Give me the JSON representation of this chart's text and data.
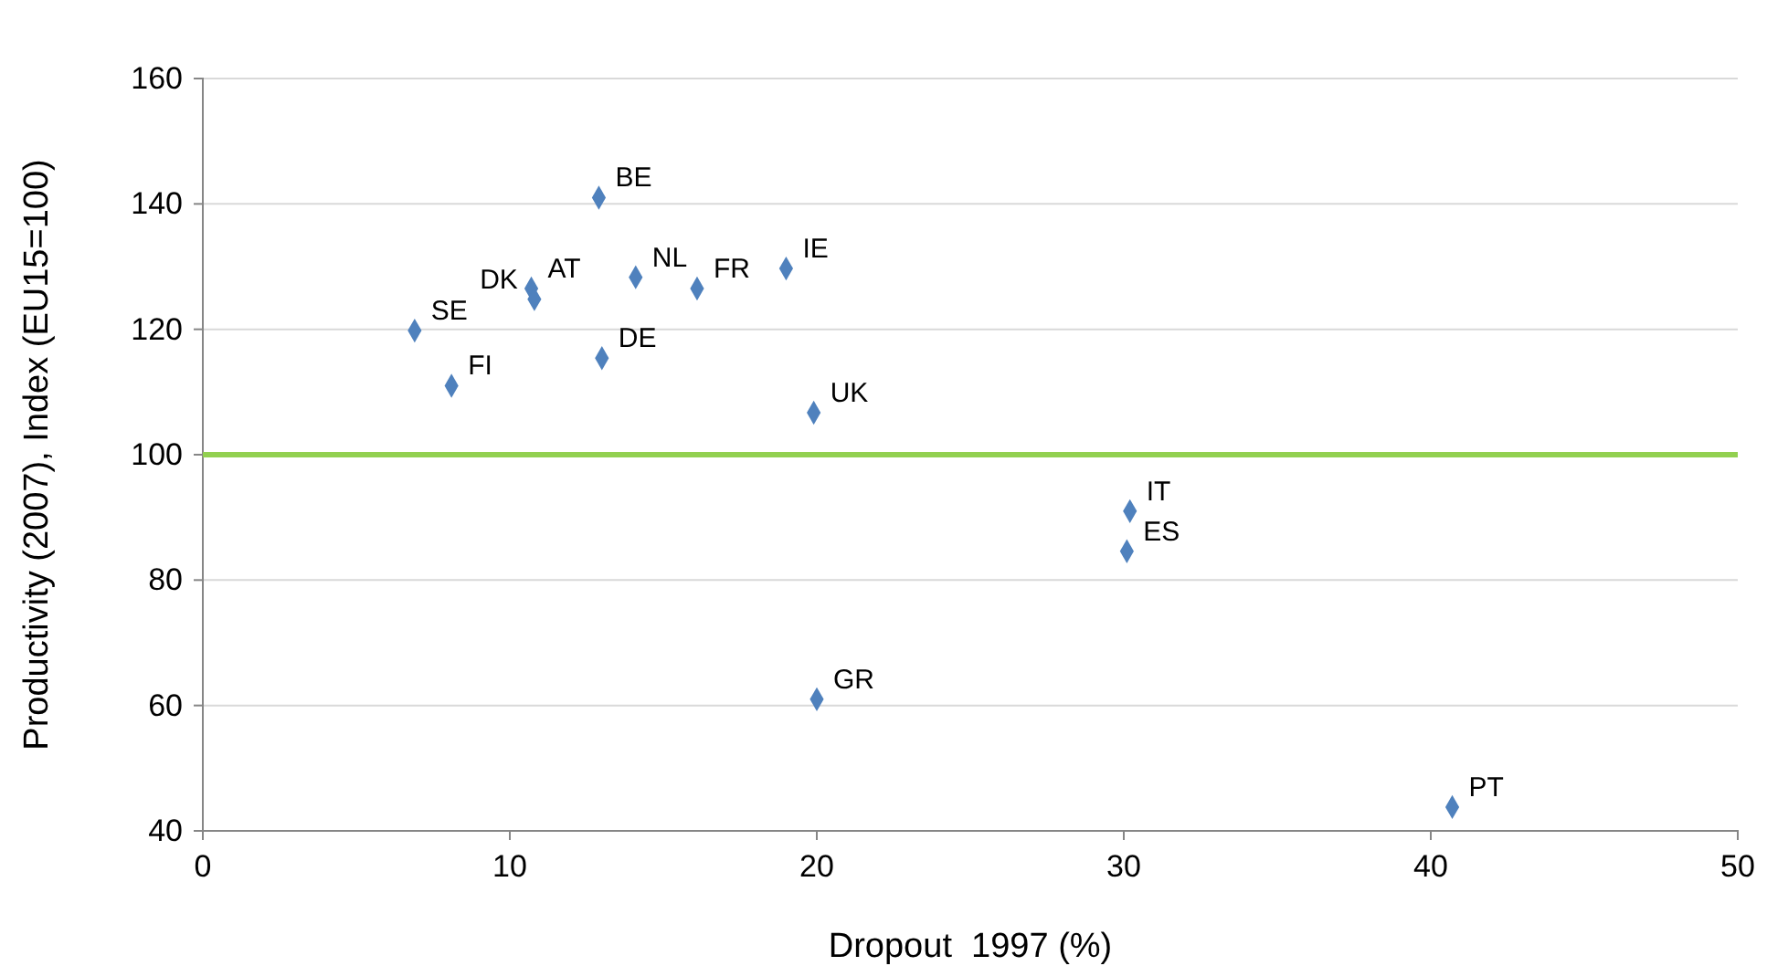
{
  "chart_data": {
    "type": "scatter",
    "xlabel": "Dropout  1997 (%)",
    "ylabel": "Productivity (2007), Index (EU15=100)",
    "xlim": [
      0,
      50
    ],
    "xticks": [
      0,
      10,
      20,
      30,
      40,
      50
    ],
    "ylim": [
      40,
      160
    ],
    "yticks": [
      40,
      60,
      80,
      100,
      120,
      140,
      160
    ],
    "grid": "y",
    "marker": "diamond",
    "series": [
      {
        "color": "#4f81bd",
        "x": [
          12.9,
          14.1,
          16.1,
          19.0,
          10.7,
          10.8,
          6.9,
          8.1,
          13.0,
          19.9,
          30.2,
          30.1,
          20.0,
          40.7
        ],
        "values": [
          141,
          128.3,
          126.5,
          129.7,
          126.5,
          124.8,
          119.8,
          111,
          115.4,
          106.7,
          91,
          84.6,
          61,
          43.8
        ]
      }
    ],
    "ref_lines": [
      {
        "axis": "y",
        "value": 100,
        "color": "#92d050"
      }
    ],
    "annotations": [
      {
        "text": "BE",
        "x": 12.9,
        "y": 141
      },
      {
        "text": "NL",
        "x": 14.1,
        "y": 128.3
      },
      {
        "text": "FR",
        "x": 16.1,
        "y": 126.5
      },
      {
        "text": "IE",
        "x": 19.0,
        "y": 129.7
      },
      {
        "text": "AT",
        "x": 10.7,
        "y": 126.5
      },
      {
        "text": "DK",
        "x": 10.8,
        "y": 124.8
      },
      {
        "text": "SE",
        "x": 6.9,
        "y": 119.8
      },
      {
        "text": "FI",
        "x": 8.1,
        "y": 111
      },
      {
        "text": "DE",
        "x": 13.0,
        "y": 115.4
      },
      {
        "text": "UK",
        "x": 19.9,
        "y": 106.7
      },
      {
        "text": "IT",
        "x": 30.2,
        "y": 91
      },
      {
        "text": "ES",
        "x": 30.1,
        "y": 84.6
      },
      {
        "text": "GR",
        "x": 20.0,
        "y": 61
      },
      {
        "text": "PT",
        "x": 40.7,
        "y": 43.8
      }
    ]
  }
}
